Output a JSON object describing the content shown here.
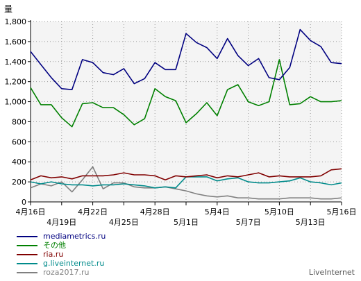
{
  "chart_data": {
    "type": "line",
    "ylabel": "量",
    "ylim": [
      0,
      1800
    ],
    "yticks": [
      0,
      200,
      400,
      600,
      800,
      1000,
      1200,
      1400,
      1600,
      1800
    ],
    "ytick_labels": [
      "0",
      "200",
      "400",
      "600",
      "800",
      "1,000",
      "1,200",
      "1,400",
      "1,600",
      "1,800"
    ],
    "x": [
      "4月16日",
      "4月17日",
      "4月18日",
      "4月19日",
      "4月20日",
      "4月21日",
      "4月22日",
      "4月23日",
      "4月24日",
      "4月25日",
      "4月26日",
      "4月27日",
      "4月28日",
      "4月29日",
      "4月30日",
      "5月1日",
      "5月2日",
      "5月3日",
      "5月4日",
      "5月5日",
      "5月6日",
      "5月7日",
      "5月8日",
      "5月9日",
      "5月10日",
      "5月11日",
      "5月12日",
      "5月13日",
      "5月14日",
      "5月15日",
      "5月16日"
    ],
    "xticks_top": [
      "4月16日",
      "4月22日",
      "4月28日",
      "5月4日",
      "5月10日",
      "5月16日"
    ],
    "xticks_bottom": [
      "4月19日",
      "4月25日",
      "5月1日",
      "5月7日",
      "5月13日"
    ],
    "grid": true,
    "legend_position": "bottom-left",
    "series": [
      {
        "name": "mediametrics.ru",
        "color": "#000080",
        "values": [
          1500,
          1370,
          1240,
          1130,
          1120,
          1420,
          1390,
          1290,
          1270,
          1330,
          1180,
          1230,
          1390,
          1320,
          1320,
          1680,
          1590,
          1540,
          1430,
          1630,
          1460,
          1360,
          1430,
          1240,
          1220,
          1340,
          1720,
          1610,
          1550,
          1390,
          1380
        ]
      },
      {
        "name": "その他",
        "color": "#008000",
        "values": [
          1140,
          970,
          970,
          840,
          750,
          980,
          990,
          940,
          940,
          870,
          770,
          830,
          1130,
          1050,
          1010,
          790,
          880,
          990,
          860,
          1120,
          1170,
          1000,
          960,
          1000,
          1420,
          970,
          980,
          1050,
          1000,
          1000,
          1010
        ]
      },
      {
        "name": "ria.ru",
        "color": "#800000",
        "values": [
          220,
          260,
          240,
          250,
          230,
          260,
          260,
          260,
          270,
          290,
          270,
          270,
          260,
          220,
          260,
          250,
          260,
          270,
          240,
          260,
          250,
          270,
          290,
          250,
          260,
          250,
          250,
          250,
          260,
          320,
          330
        ]
      },
      {
        "name": "g.liveinternet.ru",
        "color": "#008B8B",
        "values": [
          200,
          180,
          200,
          180,
          170,
          170,
          160,
          170,
          170,
          180,
          170,
          160,
          140,
          150,
          140,
          250,
          250,
          250,
          210,
          230,
          240,
          200,
          190,
          190,
          200,
          210,
          240,
          200,
          190,
          170,
          190
        ]
      },
      {
        "name": "roza2017.ru",
        "color": "#808080",
        "values": [
          140,
          180,
          160,
          200,
          100,
          220,
          350,
          130,
          190,
          190,
          150,
          140,
          140,
          150,
          130,
          110,
          80,
          60,
          50,
          60,
          40,
          40,
          30,
          30,
          30,
          40,
          40,
          40,
          30,
          30,
          40
        ]
      }
    ]
  },
  "watermark": "LiveInternet"
}
